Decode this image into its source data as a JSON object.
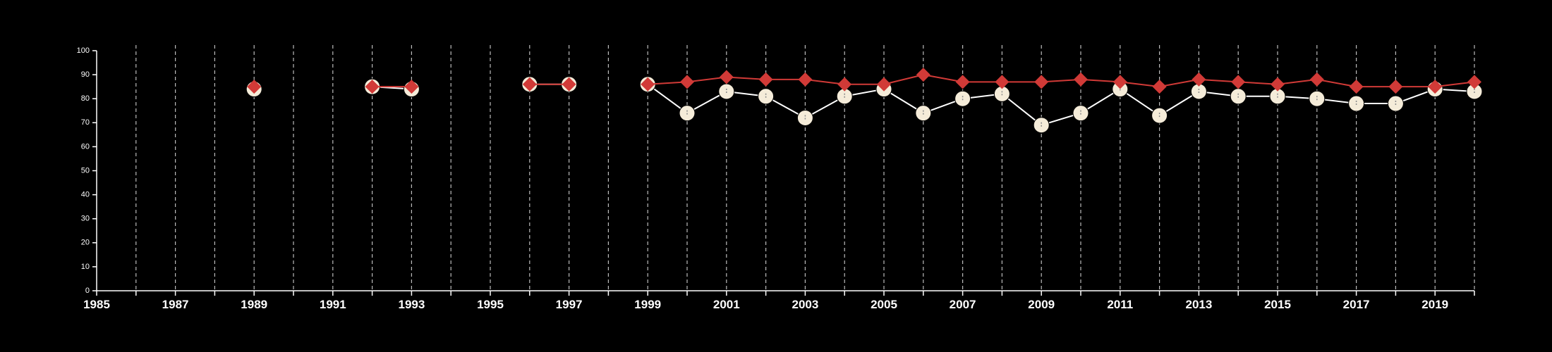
{
  "chart_data": {
    "type": "line",
    "title": "",
    "xlabel": "",
    "ylabel": "",
    "xlim": [
      1985,
      2020
    ],
    "ylim": [
      0,
      100
    ],
    "x_ticks": [
      1985,
      1986,
      1987,
      1988,
      1989,
      1990,
      1991,
      1992,
      1993,
      1994,
      1995,
      1996,
      1997,
      1998,
      1999,
      2000,
      2001,
      2002,
      2003,
      2004,
      2005,
      2006,
      2007,
      2008,
      2009,
      2010,
      2011,
      2012,
      2013,
      2014,
      2015,
      2016,
      2017,
      2018,
      2019,
      2020
    ],
    "x_tick_labels": [
      "1985",
      "1987",
      "1989",
      "1991",
      "1993",
      "1995",
      "1997",
      "1999",
      "2001",
      "2003",
      "2005",
      "2007",
      "2009",
      "2011",
      "2013",
      "2015",
      "2017",
      "2019"
    ],
    "y_ticks": [
      0,
      10,
      20,
      30,
      40,
      50,
      60,
      70,
      80,
      90,
      100
    ],
    "vertical_dashed_grid": true,
    "x": [
      1989,
      1992,
      1993,
      1996,
      1997,
      1999,
      2000,
      2001,
      2002,
      2003,
      2004,
      2005,
      2006,
      2007,
      2008,
      2009,
      2010,
      2011,
      2012,
      2013,
      2014,
      2015,
      2016,
      2017,
      2018,
      2019,
      2020
    ],
    "series": [
      {
        "marker": "circle",
        "color": "#f5ecd9",
        "line_color": "#ffffff",
        "values": [
          84,
          85,
          84,
          86,
          86,
          86,
          74,
          83,
          81,
          72,
          81,
          84,
          74,
          80,
          82,
          69,
          74,
          84,
          73,
          83,
          81,
          81,
          80,
          78,
          78,
          84,
          83
        ]
      },
      {
        "marker": "diamond",
        "color": "#d13a37",
        "line_color": "#d13a37",
        "values": [
          85,
          85,
          85,
          86,
          86,
          86,
          87,
          89,
          88,
          88,
          86,
          86,
          90,
          87,
          87,
          87,
          88,
          87,
          85,
          88,
          87,
          86,
          88,
          85,
          85,
          85,
          87
        ]
      }
    ]
  }
}
